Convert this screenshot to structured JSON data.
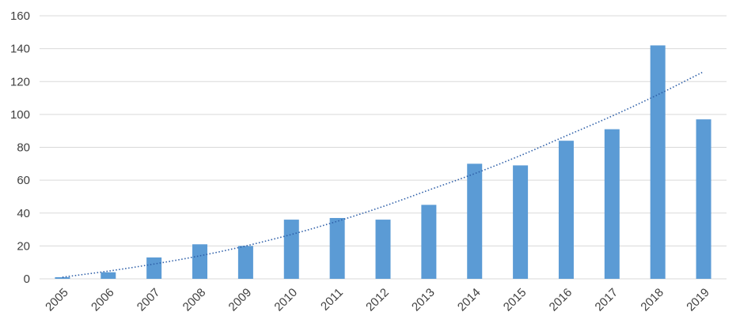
{
  "chart_data": {
    "type": "bar",
    "title": "",
    "xlabel": "",
    "ylabel": "",
    "categories": [
      "2005",
      "2006",
      "2007",
      "2008",
      "2009",
      "2010",
      "2011",
      "2012",
      "2013",
      "2014",
      "2015",
      "2016",
      "2017",
      "2018",
      "2019"
    ],
    "series": [
      {
        "values": [
          1,
          4,
          13,
          21,
          20,
          36,
          37,
          36,
          45,
          70,
          69,
          84,
          91,
          142,
          97
        ],
        "color": "#5b9bd5"
      }
    ],
    "trendline": {
      "type": "polynomial",
      "style": "dotted",
      "color": "#2e5fa8",
      "values": [
        1,
        4.7,
        9.0,
        14.0,
        20.0,
        27.0,
        35.0,
        44.0,
        54.0,
        64.0,
        75.0,
        87.0,
        99.0,
        112.0,
        126.0
      ]
    },
    "ylim": [
      0,
      160
    ],
    "yticks": [
      0,
      20,
      40,
      60,
      80,
      100,
      120,
      140,
      160
    ],
    "grid": true,
    "legend": "none"
  }
}
